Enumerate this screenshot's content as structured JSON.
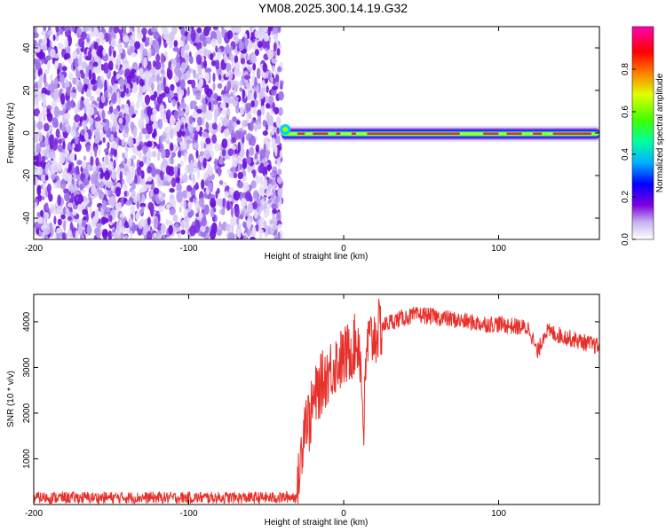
{
  "title": "YM08.2025.300.14.19.G32",
  "chart_data": [
    {
      "id": "spectrogram",
      "type": "heatmap",
      "title": "YM08.2025.300.14.19.G32",
      "xlabel": "Height of straight line (km)",
      "ylabel": "Frequency (Hz)",
      "xlim": [
        -200,
        165
      ],
      "ylim": [
        -50,
        50
      ],
      "x_ticks": [
        -200,
        -100,
        0,
        100
      ],
      "y_ticks": [
        -40,
        -20,
        0,
        20,
        40
      ],
      "noise_region_x": [
        -200,
        -40
      ],
      "signal_start_x": -40,
      "signal_center_hz": 0,
      "colorbar": {
        "label": "Normalized spectral amplitude",
        "range": [
          0,
          1
        ],
        "ticks": [
          0.0,
          0.2,
          0.4,
          0.6,
          0.8
        ],
        "colors": [
          "#ffffff",
          "#c0a8f0",
          "#8000e0",
          "#0000ff",
          "#00c0ff",
          "#00ff80",
          "#a0ff00",
          "#ffff00",
          "#ff8000",
          "#ff0000",
          "#ff00a0"
        ]
      }
    },
    {
      "id": "snr",
      "type": "line",
      "xlabel": "Height of straight line (km)",
      "ylabel": "SNR (10 * v/v)",
      "xlim": [
        -200,
        165
      ],
      "ylim": [
        0,
        4600
      ],
      "x_ticks": [
        -200,
        -100,
        0,
        100
      ],
      "y_ticks": [
        1000,
        2000,
        3000,
        4000
      ],
      "color": "#e8302a",
      "series": [
        {
          "name": "SNR",
          "x": [
            -200,
            -100,
            -40,
            -30,
            -28,
            -25,
            -22,
            -20,
            -15,
            -10,
            -5,
            0,
            5,
            10,
            13,
            15,
            20,
            25,
            30,
            40,
            50,
            60,
            70,
            80,
            90,
            100,
            110,
            120,
            125,
            130,
            140,
            150,
            160,
            165
          ],
          "y": [
            150,
            150,
            150,
            180,
            900,
            2000,
            1800,
            2200,
            2600,
            2900,
            3100,
            3200,
            3400,
            3600,
            1700,
            3500,
            3700,
            3900,
            4000,
            4100,
            4150,
            4100,
            4050,
            4000,
            3950,
            3950,
            3900,
            3850,
            3300,
            3800,
            3700,
            3600,
            3500,
            3450
          ]
        }
      ]
    }
  ]
}
